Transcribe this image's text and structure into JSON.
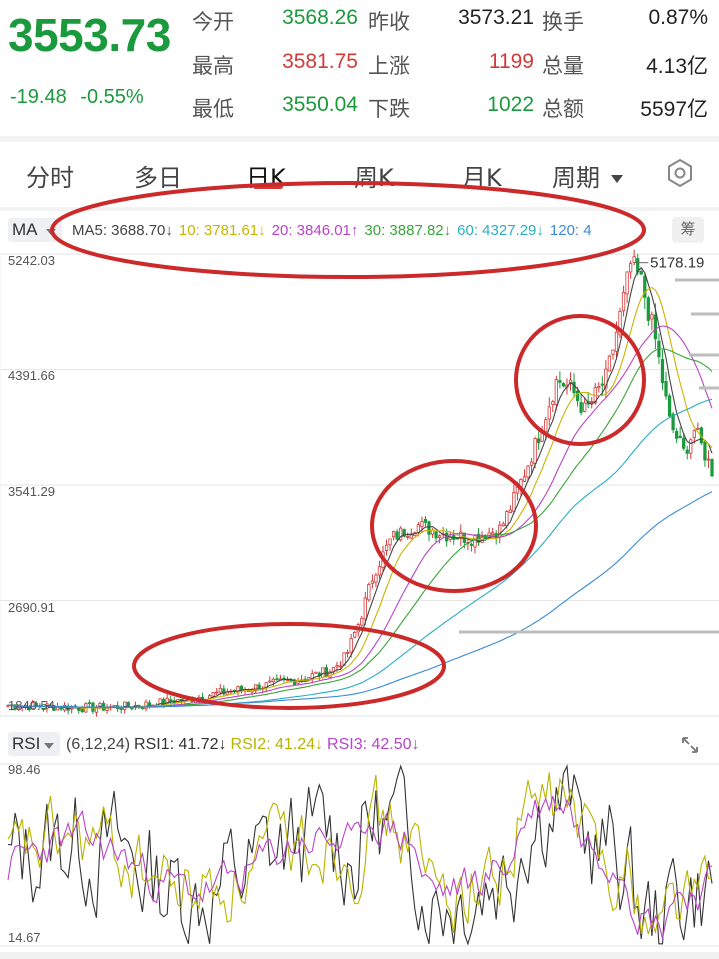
{
  "quote": {
    "price": "3553.73",
    "change": "-19.48",
    "change_pct": "-0.55%",
    "rows": [
      {
        "l1": "今开",
        "v1": "3568.26",
        "l2": "昨收",
        "v2": "3573.21",
        "l3": "换手",
        "v3": "0.87%"
      },
      {
        "l1": "最高",
        "v1": "3581.75",
        "l2": "上涨",
        "v2": "1199",
        "l3": "总量",
        "v3": "4.13亿"
      },
      {
        "l1": "最低",
        "v1": "3550.04",
        "l2": "下跌",
        "v2": "1022",
        "l3": "总额",
        "v3": "5597亿"
      }
    ]
  },
  "tabs": [
    "分时",
    "多日",
    "日K",
    "周K",
    "月K",
    "周期"
  ],
  "active_tab": "日K",
  "ma": {
    "selector": "MA",
    "items": [
      {
        "text": "MA5: 3688.70↓",
        "color": "#444444"
      },
      {
        "text": "10: 3781.61↓",
        "color": "#c9b400"
      },
      {
        "text": "20: 3846.01↑",
        "color": "#b844c8"
      },
      {
        "text": "30: 3887.82↓",
        "color": "#3aa53a"
      },
      {
        "text": "60: 4327.29↓",
        "color": "#2aaec2"
      },
      {
        "text": "120: 4",
        "color": "#3a8ad8"
      }
    ],
    "expand_label": "筹"
  },
  "kchart": {
    "y_labels": [
      "5242.03",
      "4391.66",
      "3541.29",
      "2690.91",
      "1840.54"
    ],
    "max_label": "5178.19"
  },
  "rsi": {
    "selector": "RSI",
    "items": [
      {
        "text": "(6,12,24)",
        "color": "#444444"
      },
      {
        "text": "RSI1: 41.72↓",
        "color": "#333333"
      },
      {
        "text": "RSI2: 41.24↓",
        "color": "#b8b400"
      },
      {
        "text": "RSI3: 42.50↓",
        "color": "#b844c8"
      }
    ],
    "y_labels": [
      "98.46",
      "14.67"
    ]
  },
  "colors": {
    "up": "#d23a3a",
    "down": "#1a9a3c",
    "annotation": "#cc2a2a"
  },
  "chart_data": [
    {
      "type": "candlestick",
      "ylim": [
        1840.54,
        5242.03
      ],
      "max_value": 5178.19,
      "y_ticks": [
        5242.03,
        4391.66,
        3541.29,
        2690.91,
        1840.54
      ],
      "series": [
        {
          "name": "MA5",
          "last": 3688.7
        },
        {
          "name": "10",
          "last": 3781.61
        },
        {
          "name": "20",
          "last": 3846.01
        },
        {
          "name": "30",
          "last": 3887.82
        },
        {
          "name": "60",
          "last": 4327.29
        }
      ]
    },
    {
      "type": "line",
      "ylim": [
        14.67,
        98.46
      ],
      "series": [
        {
          "name": "RSI1",
          "last": 41.72
        },
        {
          "name": "RSI2",
          "last": 41.24
        },
        {
          "name": "RSI3",
          "last": 42.5
        }
      ]
    }
  ]
}
